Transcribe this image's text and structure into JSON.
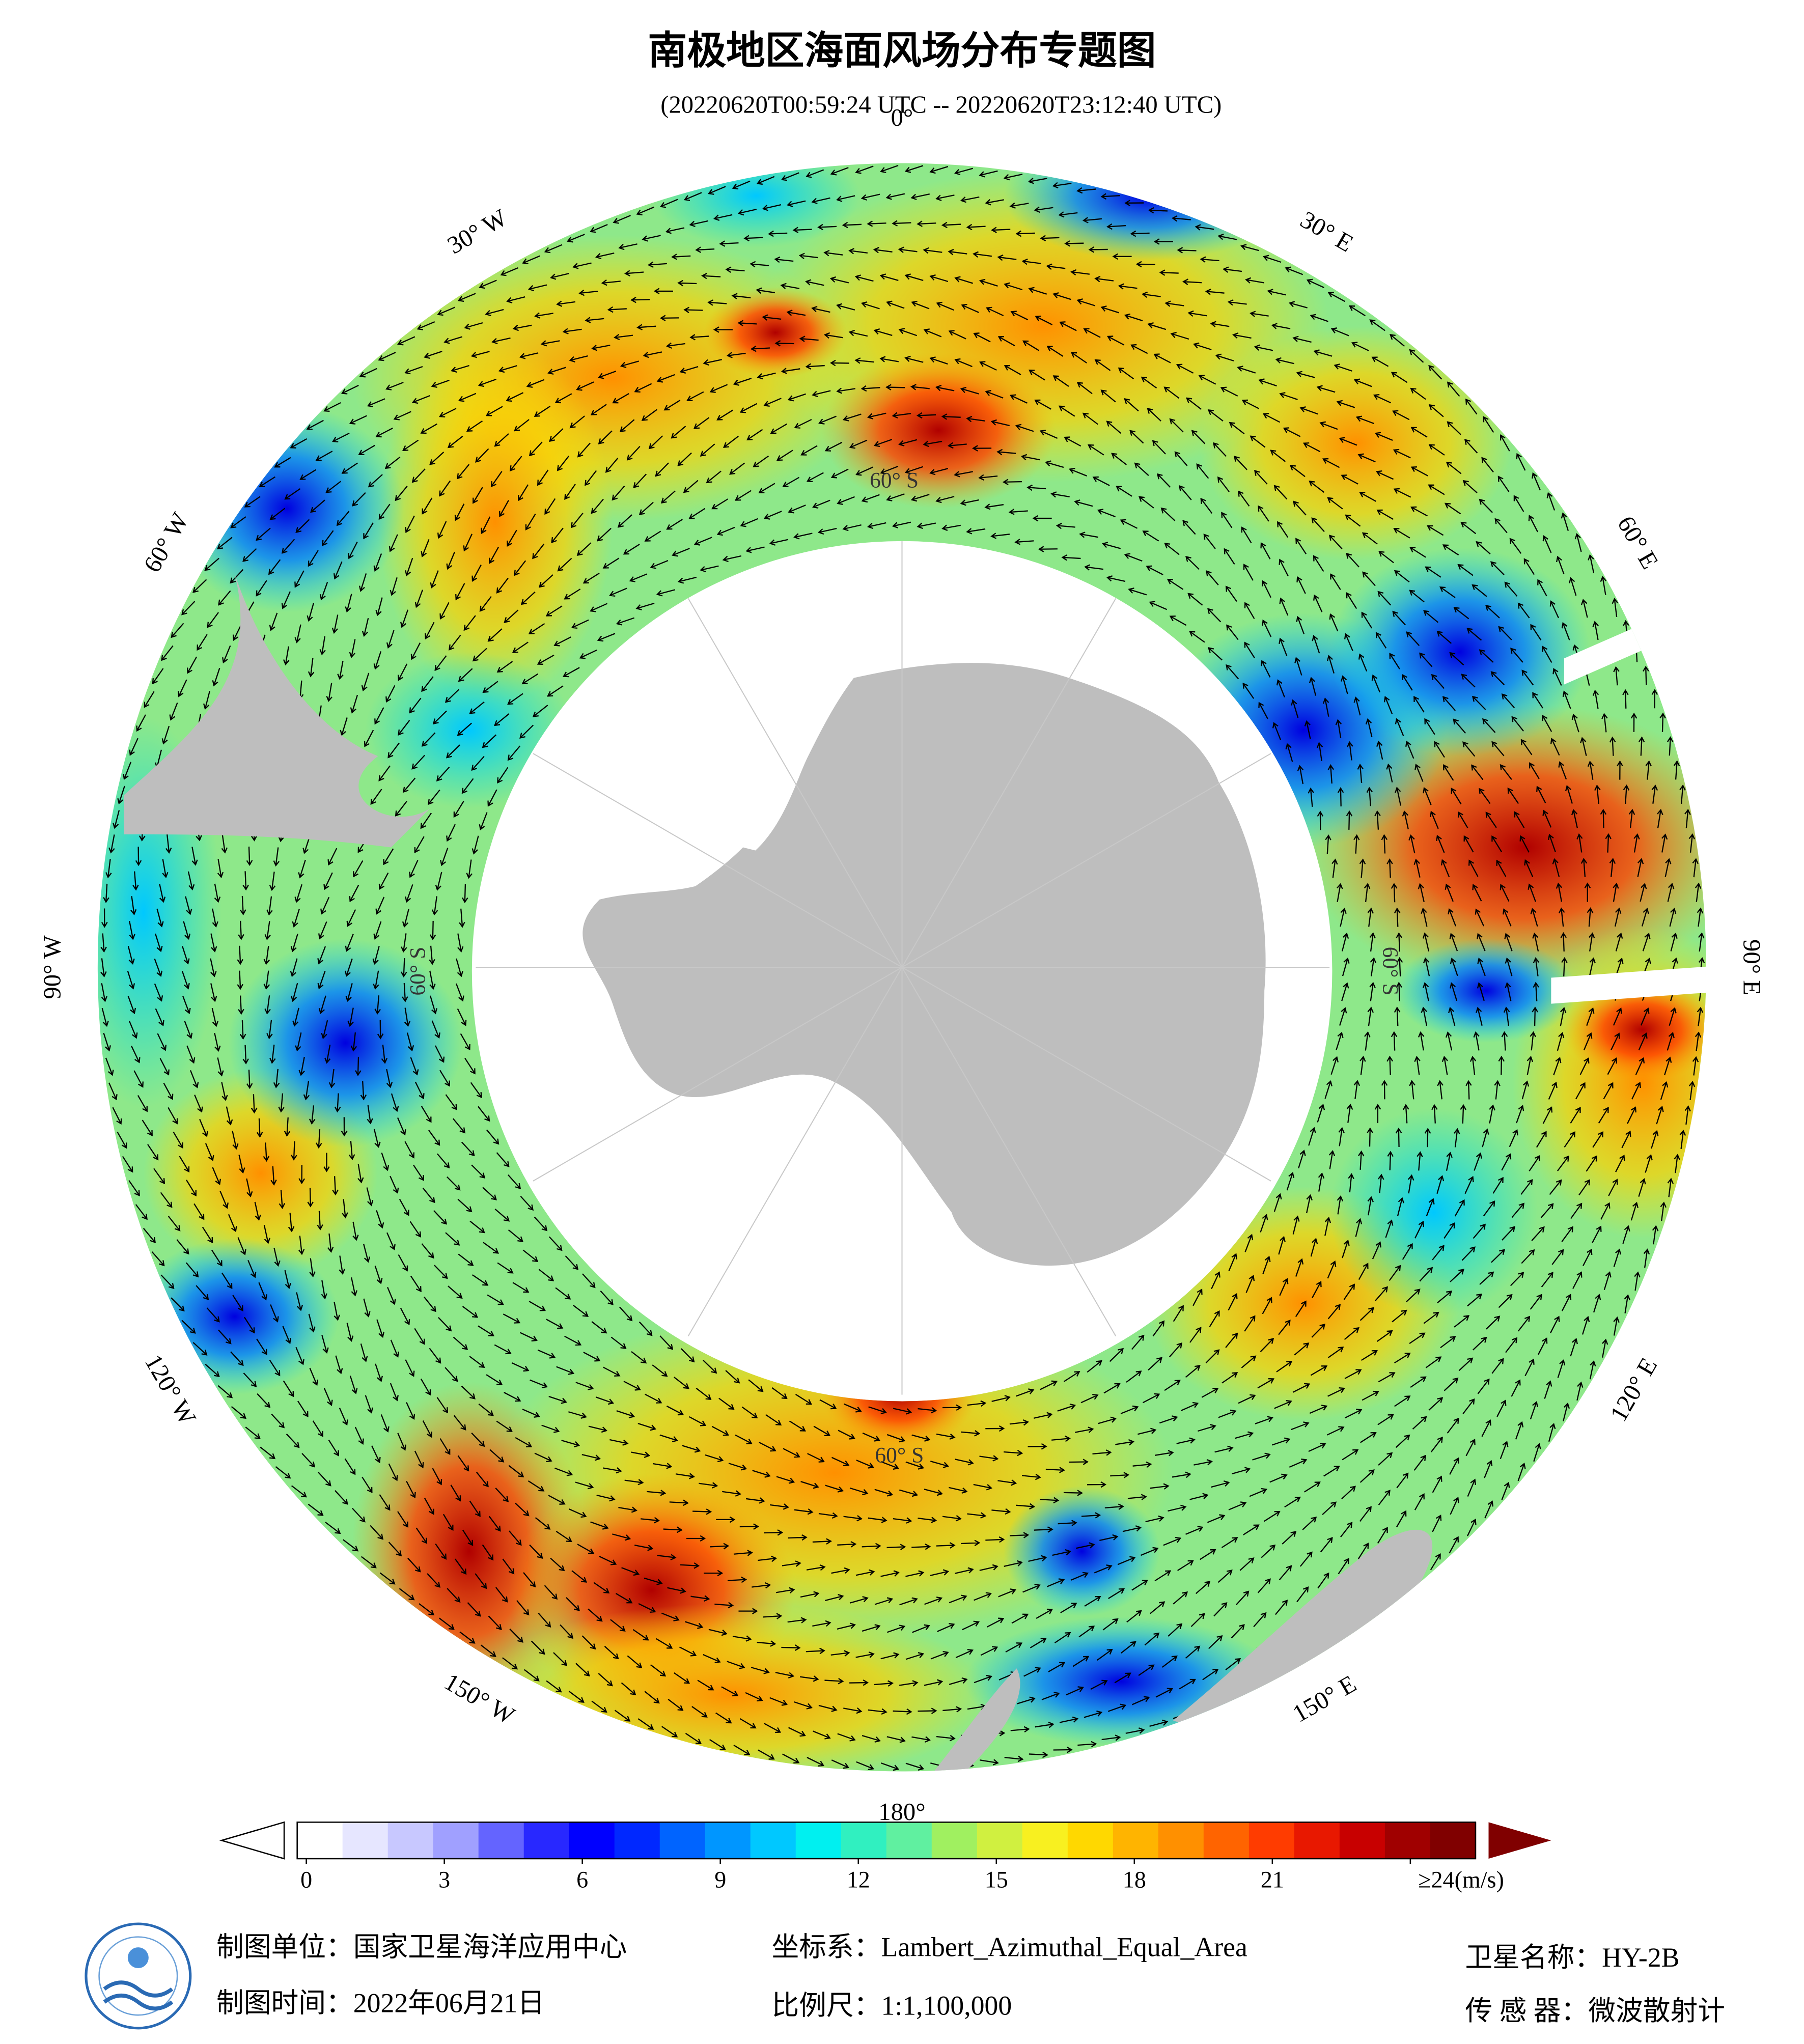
{
  "header": {
    "title": "南极地区海面风场分布专题图",
    "subtitle": "(20220620T00:59:24 UTC -- 20220620T23:12:40 UTC)"
  },
  "map": {
    "longitude_labels": [
      "0°",
      "30° E",
      "60° E",
      "90° E",
      "120° E",
      "150° E",
      "180°",
      "150° W",
      "120° W",
      "90° W",
      "60° W",
      "30° W"
    ],
    "latitude_labels": [
      "60° S",
      "60° S",
      "60° S",
      "60° S"
    ]
  },
  "colorbar": {
    "ticks": [
      0,
      3,
      6,
      9,
      12,
      15,
      18,
      21,
      {
        "value": 24,
        "label": "≥24(m/s)"
      }
    ],
    "colors": [
      "#ffffff",
      "#e6e6ff",
      "#c8c8ff",
      "#a0a0ff",
      "#6464ff",
      "#2828ff",
      "#0000ff",
      "#0028ff",
      "#0064ff",
      "#0096ff",
      "#00c8ff",
      "#00f0f0",
      "#30f0c0",
      "#60f0a0",
      "#a0f060",
      "#d0f040",
      "#f8f020",
      "#ffd800",
      "#ffb400",
      "#ff9000",
      "#ff6400",
      "#ff3c00",
      "#e81800",
      "#c80000",
      "#a00000",
      "#800000"
    ]
  },
  "footer": {
    "producer": "制图单位：国家卫星海洋应用中心",
    "crs": "坐标系：Lambert_Azimuthal_Equal_Area",
    "satellite": "卫星名称：HY-2B",
    "date": "制图时间：2022年06月21日",
    "scale": "比例尺：1:1,100,000",
    "sensor": "传 感 器：微波散射计"
  }
}
